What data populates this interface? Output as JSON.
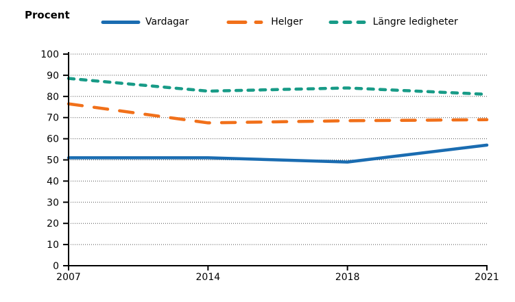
{
  "page": {
    "background": "#ffffff"
  },
  "chart_data": {
    "type": "line",
    "title": "",
    "ylabel": "Procent",
    "xlabel": "",
    "categories": [
      "2007",
      "2014",
      "2018",
      "2021"
    ],
    "series": [
      {
        "name": "Vardagar",
        "color": "#1a6cb1",
        "line_style": "solid",
        "values": [
          51,
          51,
          49,
          57
        ]
      },
      {
        "name": "Helger",
        "color": "#f1701a",
        "line_style": "long-dash",
        "values": [
          76.5,
          67.5,
          68.5,
          69
        ]
      },
      {
        "name": "Längre ledigheter",
        "color": "#189b87",
        "line_style": "short-dash",
        "values": [
          88.5,
          82.5,
          84,
          81
        ]
      }
    ],
    "ylim": [
      0,
      100
    ],
    "ytick_step": 10,
    "grid": true,
    "gridline_color": "#4d4d4d",
    "axis_color": "#000000",
    "legend_position": "top"
  }
}
